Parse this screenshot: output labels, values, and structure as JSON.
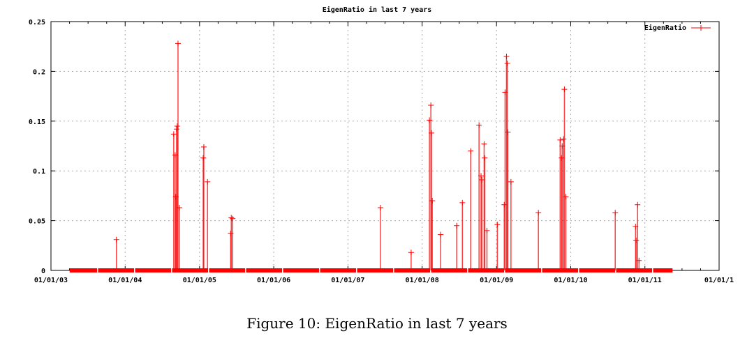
{
  "chart_data": {
    "type": "line",
    "title": "EigenRatio in last 7 years",
    "xlabel": "",
    "ylabel": "",
    "xlim": [
      "2003-01-01",
      "2012-01-01"
    ],
    "ylim": [
      0,
      0.25
    ],
    "x_tick_labels": [
      "01/01/03",
      "01/01/04",
      "01/01/05",
      "01/01/06",
      "01/01/07",
      "01/01/08",
      "01/01/09",
      "01/01/10",
      "01/01/11",
      "01/01/1"
    ],
    "x_tick_dates": [
      "2003-01-01",
      "2004-01-01",
      "2005-01-01",
      "2006-01-01",
      "2007-01-01",
      "2008-01-01",
      "2009-01-01",
      "2010-01-01",
      "2011-01-01",
      "2012-01-01"
    ],
    "y_ticks": [
      0,
      0.05,
      0.1,
      0.15,
      0.2,
      0.25
    ],
    "y_tick_labels": [
      "0",
      "0.05",
      "0.1",
      "0.15",
      "0.2",
      "0.25"
    ],
    "grid": true,
    "legend_position": "top-right",
    "series": [
      {
        "name": "EigenRatio",
        "color": "#ff0000",
        "marker": "plus",
        "baseline_value": 0,
        "data_start": "2003-04-03",
        "data_end": "2011-05-17",
        "points": [
          [
            "2003-11-19",
            0.031
          ],
          [
            "2004-08-27",
            0.137
          ],
          [
            "2004-09-03",
            0.116
          ],
          [
            "2004-09-06",
            0.074
          ],
          [
            "2004-09-10",
            0.142
          ],
          [
            "2004-09-13",
            0.145
          ],
          [
            "2004-09-17",
            0.228
          ],
          [
            "2004-09-24",
            0.063
          ],
          [
            "2005-01-19",
            0.113
          ],
          [
            "2005-01-22",
            0.124
          ],
          [
            "2005-02-09",
            0.089
          ],
          [
            "2005-06-03",
            0.037
          ],
          [
            "2005-06-06",
            0.053
          ],
          [
            "2005-06-13",
            0.052
          ],
          [
            "2007-06-10",
            0.063
          ],
          [
            "2007-11-08",
            0.018
          ],
          [
            "2008-02-06",
            0.151
          ],
          [
            "2008-02-13",
            0.166
          ],
          [
            "2008-02-16",
            0.138
          ],
          [
            "2008-02-20",
            0.07
          ],
          [
            "2008-04-01",
            0.036
          ],
          [
            "2008-06-19",
            0.045
          ],
          [
            "2008-07-17",
            0.068
          ],
          [
            "2008-08-27",
            0.12
          ],
          [
            "2008-10-07",
            0.146
          ],
          [
            "2008-10-17",
            0.095
          ],
          [
            "2008-10-21",
            0.091
          ],
          [
            "2008-11-01",
            0.127
          ],
          [
            "2008-11-04",
            0.113
          ],
          [
            "2008-11-15",
            0.04
          ],
          [
            "2009-01-05",
            0.046
          ],
          [
            "2009-02-08",
            0.066
          ],
          [
            "2009-02-12",
            0.179
          ],
          [
            "2009-02-19",
            0.215
          ],
          [
            "2009-02-23",
            0.208
          ],
          [
            "2009-02-26",
            0.139
          ],
          [
            "2009-03-13",
            0.089
          ],
          [
            "2009-07-26",
            0.058
          ],
          [
            "2009-11-10",
            0.131
          ],
          [
            "2009-11-17",
            0.113
          ],
          [
            "2009-11-20",
            0.125
          ],
          [
            "2009-11-27",
            0.132
          ],
          [
            "2009-12-01",
            0.182
          ],
          [
            "2009-12-08",
            0.074
          ],
          [
            "2010-08-08",
            0.058
          ],
          [
            "2010-11-16",
            0.044
          ],
          [
            "2010-11-19",
            0.03
          ],
          [
            "2010-11-26",
            0.066
          ],
          [
            "2010-12-03",
            0.01
          ]
        ]
      }
    ]
  },
  "caption": "Figure 10: EigenRatio in last 7 years"
}
